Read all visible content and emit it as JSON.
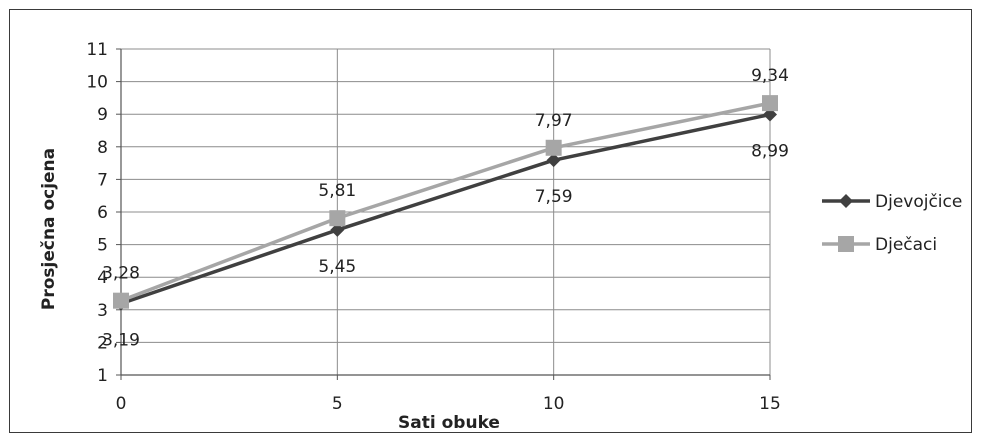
{
  "chart_data": {
    "type": "line",
    "title": "",
    "xlabel": "Sati obuke",
    "ylabel": "Prosječna ocjena",
    "x": [
      0,
      5,
      10,
      15
    ],
    "xlim": [
      0,
      15
    ],
    "ylim": [
      1,
      11
    ],
    "xticks": [
      "0",
      "5",
      "10",
      "15"
    ],
    "yticks": [
      "1",
      "2",
      "3",
      "4",
      "5",
      "6",
      "7",
      "8",
      "9",
      "10",
      "11"
    ],
    "grid": true,
    "legend_position": "right",
    "series": [
      {
        "name": "Djevojčice",
        "values": [
          3.19,
          5.45,
          7.59,
          8.99
        ],
        "labels": [
          "3,19",
          "5,45",
          "7,59",
          "8,99"
        ],
        "color": "#404040",
        "marker": "diamond"
      },
      {
        "name": "Dječaci",
        "values": [
          3.28,
          5.81,
          7.97,
          9.34
        ],
        "labels": [
          "3,28",
          "5,81",
          "7,97",
          "9,34"
        ],
        "color": "#a6a6a6",
        "marker": "square"
      }
    ]
  }
}
